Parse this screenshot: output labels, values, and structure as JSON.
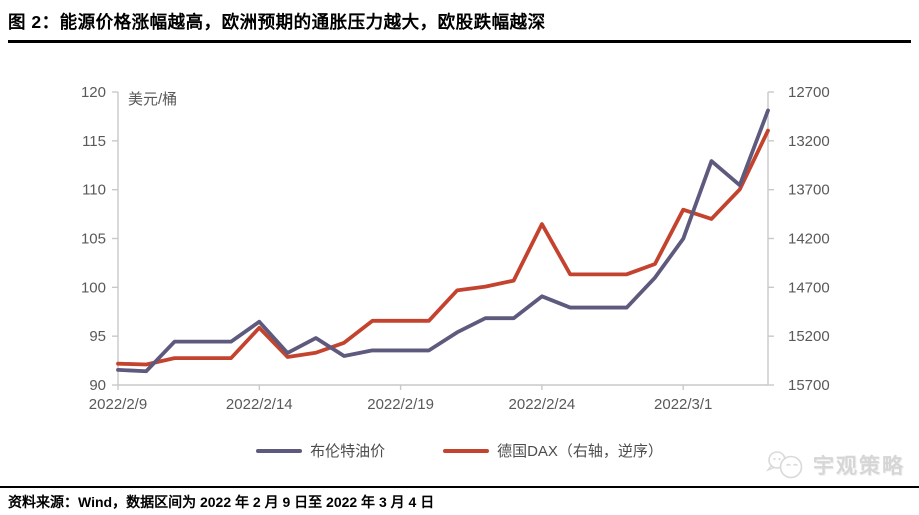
{
  "title": "图 2：能源价格涨幅越高，欧洲预期的通胀压力越大，欧股跌幅越深",
  "source_note": "资料来源：Wind，数据区间为 2022 年 2 月 9 日至 2022 年 3 月 4 日",
  "watermark": "宇观策略",
  "colors": {
    "brent_line": "#5D5A7D",
    "dax_line": "#C4432F",
    "axis_line": "#C9C9C9",
    "tick_label": "#595959",
    "title_text": "#000000",
    "watermark_text": "#D6D6D6"
  },
  "chart_data": {
    "type": "line",
    "unit_label": "美元/桶",
    "x_dates": [
      "2022/2/9",
      "2022/2/10",
      "2022/2/11",
      "2022/2/12",
      "2022/2/13",
      "2022/2/14",
      "2022/2/15",
      "2022/2/16",
      "2022/2/17",
      "2022/2/18",
      "2022/2/19",
      "2022/2/20",
      "2022/2/21",
      "2022/2/22",
      "2022/2/23",
      "2022/2/24",
      "2022/2/25",
      "2022/2/26",
      "2022/2/27",
      "2022/2/28",
      "2022/3/1",
      "2022/3/2",
      "2022/3/3",
      "2022/3/4"
    ],
    "x_tick_indices": [
      0,
      5,
      10,
      15,
      20
    ],
    "x_tick_labels": [
      "2022/2/9",
      "2022/2/14",
      "2022/2/19",
      "2022/2/24",
      "2022/3/1"
    ],
    "left_axis": {
      "min": 90,
      "max": 120,
      "ticks": [
        120,
        115,
        110,
        105,
        100,
        95,
        90
      ]
    },
    "right_axis": {
      "min": 12700,
      "max": 15700,
      "inverted": true,
      "ticks": [
        12700,
        13200,
        13700,
        14200,
        14700,
        15200,
        15700
      ]
    },
    "grid": false,
    "legend_position": "bottom",
    "series": [
      {
        "name": "布伦特油价",
        "axis": "left",
        "color": "#5D5A7D",
        "values": [
          91.55,
          91.41,
          94.44,
          94.44,
          94.44,
          96.48,
          93.28,
          94.81,
          92.97,
          93.54,
          93.54,
          93.54,
          95.39,
          96.84,
          96.84,
          99.08,
          97.93,
          97.93,
          97.93,
          100.99,
          104.97,
          112.93,
          110.46,
          118.11
        ]
      },
      {
        "name": "德国DAX（右轴，逆序）",
        "axis": "right",
        "color": "#C4432F",
        "values": [
          15482,
          15490,
          15425,
          15425,
          15425,
          15114,
          15413,
          15370,
          15268,
          15043,
          15043,
          15043,
          14731,
          14693,
          14631,
          14052,
          14567,
          14567,
          14567,
          14461,
          13905,
          14000,
          13698,
          13095
        ]
      }
    ]
  }
}
